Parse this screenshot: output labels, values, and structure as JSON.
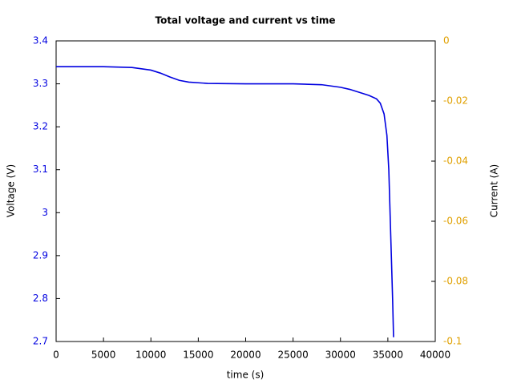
{
  "chart_data": {
    "type": "line",
    "title": "Total voltage and current vs time",
    "x_label": "time (s)",
    "y_label": "Voltage (V)",
    "y2_label": "Current (A)",
    "x": [
      0,
      5000,
      8000,
      10000,
      11000,
      12000,
      13000,
      14000,
      16000,
      20000,
      25000,
      28000,
      30000,
      31000,
      32000,
      33000,
      33800,
      34200,
      34600,
      34900,
      35100,
      35300,
      35500,
      35600
    ],
    "series": [
      {
        "color": "#0000e0",
        "values": [
          3.34,
          3.34,
          3.338,
          3.332,
          3.325,
          3.316,
          3.308,
          3.304,
          3.301,
          3.3,
          3.3,
          3.298,
          3.292,
          3.287,
          3.28,
          3.273,
          3.265,
          3.255,
          3.23,
          3.18,
          3.1,
          2.95,
          2.8,
          2.71
        ]
      }
    ],
    "xlim": [
      0,
      40000
    ],
    "xticks": [
      0,
      5000,
      10000,
      15000,
      20000,
      25000,
      30000,
      35000,
      40000
    ],
    "ylim": [
      2.7,
      3.4
    ],
    "yticks": [
      2.7,
      2.8,
      2.9,
      3,
      3.1,
      3.2,
      3.3,
      3.4
    ],
    "y_color": "#0000e0",
    "y2lim": [
      -0.1,
      0
    ],
    "y2ticks": [
      -0.1,
      -0.08,
      -0.06,
      -0.04,
      -0.02,
      0
    ],
    "y2_color": "#e0a000"
  }
}
